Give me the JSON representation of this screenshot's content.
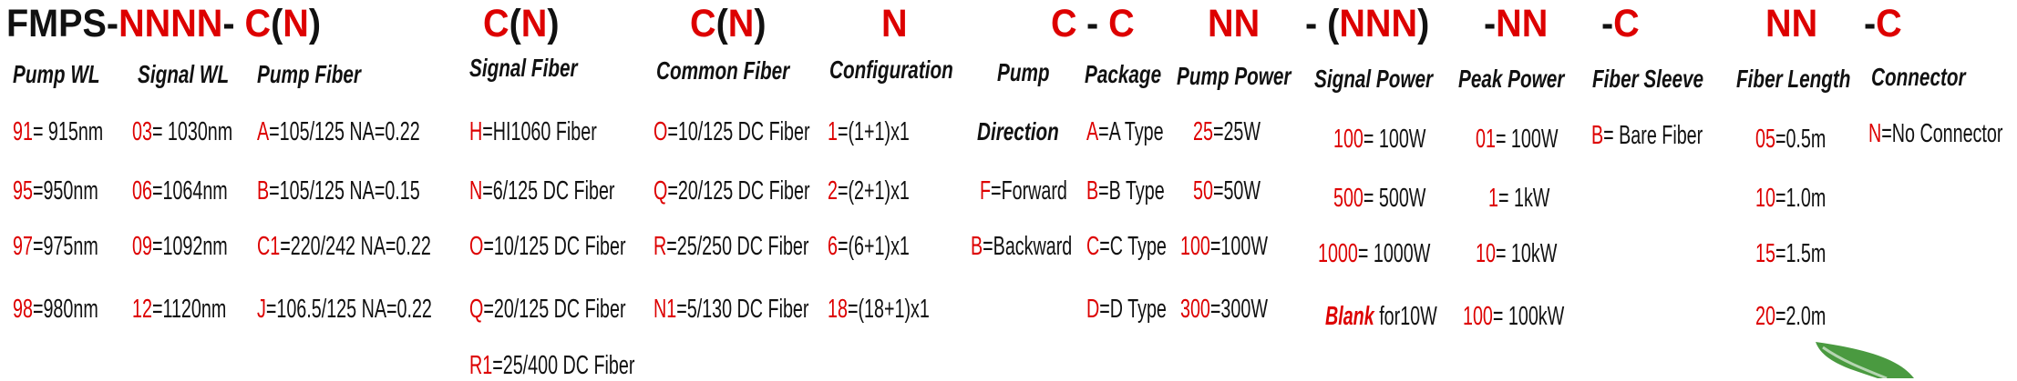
{
  "colors": {
    "code": "#dd0000",
    "text": "#111111",
    "leaf": "#4a9a40"
  },
  "title_segments": [
    [
      {
        "t": "FMPS-",
        "c": "k"
      },
      {
        "t": "NNNN",
        "c": "r"
      },
      {
        "t": "- ",
        "c": "k"
      },
      {
        "t": "C",
        "c": "r"
      },
      {
        "t": "(",
        "c": "k"
      },
      {
        "t": "N",
        "c": "r"
      },
      {
        "t": ")",
        "c": "k"
      }
    ],
    [
      {
        "t": "C",
        "c": "r"
      },
      {
        "t": "(",
        "c": "k"
      },
      {
        "t": "N",
        "c": "r"
      },
      {
        "t": ")",
        "c": "k"
      }
    ],
    [
      {
        "t": "C",
        "c": "r"
      },
      {
        "t": "(",
        "c": "k"
      },
      {
        "t": "N",
        "c": "r"
      },
      {
        "t": ")",
        "c": "k"
      }
    ],
    [
      {
        "t": "N",
        "c": "r"
      }
    ],
    [
      {
        "t": "C",
        "c": "r"
      }
    ],
    [
      {
        "t": "- ",
        "c": "k"
      },
      {
        "t": "C",
        "c": "r"
      }
    ],
    [
      {
        "t": "NN",
        "c": "r"
      }
    ],
    [
      {
        "t": "- (",
        "c": "k"
      },
      {
        "t": "NNN",
        "c": "r"
      },
      {
        "t": ")",
        "c": "k"
      }
    ],
    [
      {
        "t": "-",
        "c": "k"
      },
      {
        "t": "NN",
        "c": "r"
      }
    ],
    [
      {
        "t": "-",
        "c": "k"
      },
      {
        "t": "C",
        "c": "r"
      }
    ],
    [
      {
        "t": "NN",
        "c": "r"
      }
    ],
    [
      {
        "t": "-",
        "c": "k"
      },
      {
        "t": "C",
        "c": "r"
      }
    ]
  ],
  "columns": [
    {
      "header": "Pump WL",
      "items": [
        {
          "code": "91",
          "text": "= 915nm"
        },
        {
          "code": "95",
          "text": "=950nm"
        },
        {
          "code": "97",
          "text": "=975nm"
        },
        {
          "code": "98",
          "text": "=980nm"
        }
      ]
    },
    {
      "header": "Signal WL",
      "items": [
        {
          "code": "03",
          "text": "= 1030nm"
        },
        {
          "code": "06",
          "text": "=1064nm"
        },
        {
          "code": "09",
          "text": "=1092nm"
        },
        {
          "code": "12",
          "text": "=1120nm"
        }
      ]
    },
    {
      "header": "Pump Fiber",
      "items": [
        {
          "code": "A",
          "text": "=105/125 NA=0.22"
        },
        {
          "code": "B",
          "text": "=105/125 NA=0.15"
        },
        {
          "code": "C1",
          "text": "=220/242 NA=0.22"
        },
        {
          "code": "J",
          "text": "=106.5/125 NA=0.22"
        }
      ]
    },
    {
      "header": "Signal Fiber",
      "items": [
        {
          "code": "H",
          "text": "=HI1060 Fiber"
        },
        {
          "code": "N",
          "text": "=6/125 DC Fiber"
        },
        {
          "code": "O",
          "text": "=10/125 DC Fiber"
        },
        {
          "code": "Q",
          "text": "=20/125 DC Fiber"
        },
        {
          "code": "R1",
          "text": "=25/400 DC Fiber"
        }
      ]
    },
    {
      "header": "Common Fiber",
      "items": [
        {
          "code": "O",
          "text": "=10/125 DC Fiber"
        },
        {
          "code": "Q",
          "text": "=20/125 DC Fiber"
        },
        {
          "code": "R",
          "text": "=25/250 DC Fiber"
        },
        {
          "code": "N1",
          "text": "=5/130 DC Fiber"
        }
      ]
    },
    {
      "header": "Configuration",
      "items": [
        {
          "code": "1",
          "text": "=(1+1)x1"
        },
        {
          "code": "2",
          "text": "=(2+1)x1"
        },
        {
          "code": "6",
          "text": "=(6+1)x1"
        },
        {
          "code": "18",
          "text": "=(18+1)x1"
        }
      ]
    },
    {
      "header": "Pump",
      "items": [
        {
          "code": "",
          "text": "Direction",
          "style": "subheader"
        },
        {
          "code": "F",
          "text": "=Forward"
        },
        {
          "code": "B",
          "text": "=Backward"
        }
      ]
    },
    {
      "header": "Package",
      "items": [
        {
          "code": "A",
          "text": "=A Type"
        },
        {
          "code": "B",
          "text": "=B Type"
        },
        {
          "code": "C",
          "text": "=C Type"
        },
        {
          "code": "D",
          "text": "=D Type"
        }
      ]
    },
    {
      "header": "Pump Power",
      "items": [
        {
          "code": "25",
          "text": "=25W"
        },
        {
          "code": "50",
          "text": "=50W"
        },
        {
          "code": "100",
          "text": "=100W"
        },
        {
          "code": "300",
          "text": "=300W"
        }
      ]
    },
    {
      "header": "Signal Power",
      "items": [
        {
          "code": "100",
          "text": "= 100W"
        },
        {
          "code": "500",
          "text": "= 500W"
        },
        {
          "code": "1000",
          "text": "= 1000W"
        },
        {
          "code": "Blank",
          "text": " for10W",
          "style": "italic-code"
        }
      ]
    },
    {
      "header": "Peak Power",
      "items": [
        {
          "code": "01",
          "text": "= 100W"
        },
        {
          "code": "1",
          "text": "= 1kW"
        },
        {
          "code": "10",
          "text": "= 10kW"
        },
        {
          "code": "100",
          "text": "= 100kW"
        }
      ]
    },
    {
      "header": "Fiber Sleeve",
      "items": [
        {
          "code": "B",
          "text": "= Bare Fiber"
        }
      ]
    },
    {
      "header": "Fiber Length",
      "items": [
        {
          "code": "05",
          "text": "=0.5m"
        },
        {
          "code": "10",
          "text": "=1.0m"
        },
        {
          "code": "15",
          "text": "=1.5m"
        },
        {
          "code": "20",
          "text": "=2.0m"
        }
      ]
    },
    {
      "header": "Connector",
      "items": [
        {
          "code": "N",
          "text": "=No Connector"
        }
      ]
    }
  ],
  "decoration": {
    "leaf_icon": "leaf-icon"
  }
}
